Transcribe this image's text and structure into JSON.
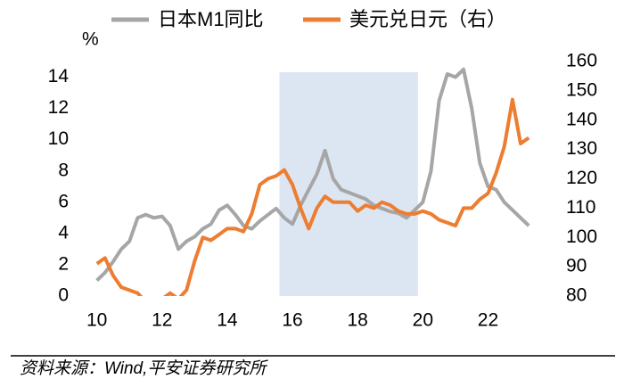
{
  "chart_data": {
    "type": "line",
    "x": [
      10,
      10.25,
      10.5,
      10.75,
      11,
      11.25,
      11.5,
      11.75,
      12,
      12.25,
      12.5,
      12.75,
      13,
      13.25,
      13.5,
      13.75,
      14,
      14.25,
      14.5,
      14.75,
      15,
      15.25,
      15.5,
      15.75,
      16,
      16.25,
      16.5,
      16.75,
      17,
      17.25,
      17.5,
      17.75,
      18,
      18.25,
      18.5,
      18.75,
      19,
      19.25,
      19.5,
      19.75,
      20,
      20.25,
      20.5,
      20.75,
      21,
      21.25,
      21.5,
      21.75,
      22,
      22.25,
      22.5,
      22.75,
      23,
      23.25
    ],
    "series": [
      {
        "name": "日本M1同比",
        "color": "#a6a6a6",
        "values": [
          1.0,
          1.5,
          2.2,
          3.0,
          3.5,
          5.0,
          5.2,
          5.0,
          5.1,
          4.5,
          3.0,
          3.5,
          3.8,
          4.3,
          4.6,
          5.5,
          5.8,
          5.2,
          4.5,
          4.3,
          4.8,
          5.2,
          5.6,
          5.0,
          4.6,
          5.8,
          6.8,
          7.8,
          9.3,
          7.5,
          6.8,
          6.6,
          6.4,
          6.2,
          5.8,
          5.6,
          5.4,
          5.3,
          5.0,
          5.5,
          6.0,
          8.0,
          12.5,
          14.2,
          14.0,
          14.5,
          12.0,
          8.5,
          7.0,
          6.8,
          6.0,
          5.5,
          5.0,
          4.5
        ]
      },
      {
        "name": "美元兑日元（右）",
        "color": "#ed7d31",
        "axis": "y2",
        "values": [
          91,
          93,
          87,
          83,
          82,
          81,
          78,
          78,
          79,
          81,
          79,
          82,
          92,
          100,
          99,
          101,
          103,
          103,
          102,
          108,
          118,
          120,
          121,
          123,
          118,
          110,
          103,
          110,
          114,
          112,
          112,
          112,
          109,
          111,
          110,
          112,
          111,
          109,
          108,
          108,
          109,
          108,
          106,
          105,
          104,
          110,
          110,
          113,
          115,
          122,
          131,
          147,
          132,
          134
        ]
      }
    ],
    "y_label": "%",
    "xlim": [
      9.9,
      23.3
    ],
    "xticks": [
      10,
      12,
      14,
      16,
      18,
      20,
      22
    ],
    "ylim": [
      0,
      15
    ],
    "yticks": [
      0,
      2,
      4,
      6,
      8,
      10,
      12,
      14
    ],
    "y2lim": [
      80,
      160
    ],
    "y2ticks": [
      80,
      90,
      100,
      110,
      120,
      130,
      140,
      150,
      160
    ],
    "shaded_range": [
      15.6,
      19.85
    ],
    "shade_color": "#dce6f2"
  },
  "source": "资料来源：Wind,平安证券研究所"
}
